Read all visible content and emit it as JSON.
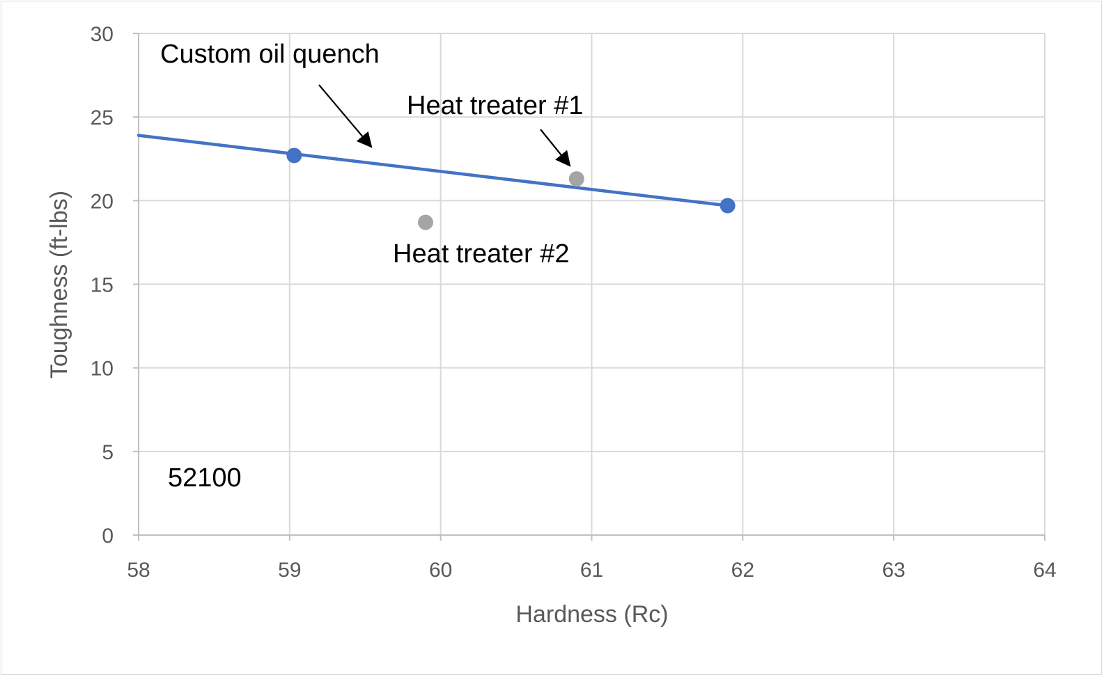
{
  "chart_data": {
    "type": "scatter",
    "xlabel": "Hardness (Rc)",
    "ylabel": "Toughness (ft-lbs)",
    "xlim": [
      58,
      64
    ],
    "ylim": [
      0,
      30
    ],
    "x_ticks": [
      "58",
      "59",
      "60",
      "61",
      "62",
      "63",
      "64"
    ],
    "y_ticks": [
      "0",
      "5",
      "10",
      "15",
      "20",
      "25",
      "30"
    ],
    "grid": true,
    "legend": "none",
    "series": [
      {
        "points": [
          {
            "x": 59.03,
            "y": 22.7
          },
          {
            "x": 61.9,
            "y": 19.7
          }
        ],
        "color": "#4472c4",
        "trendline": {
          "x_start": 58,
          "y_start": 23.9,
          "x_end": 61.9,
          "y_end": 19.7
        }
      },
      {
        "points": [
          {
            "x": 60.9,
            "y": 21.3
          },
          {
            "x": 59.9,
            "y": 18.7
          }
        ],
        "color": "#a5a5a5"
      }
    ],
    "annotations": [
      {
        "text": "Custom oil quench",
        "arrow": true
      },
      {
        "text": "Heat treater #1",
        "arrow": true
      },
      {
        "text": "Heat treater #2",
        "arrow": false
      },
      {
        "text": "52100",
        "arrow": false
      }
    ]
  }
}
